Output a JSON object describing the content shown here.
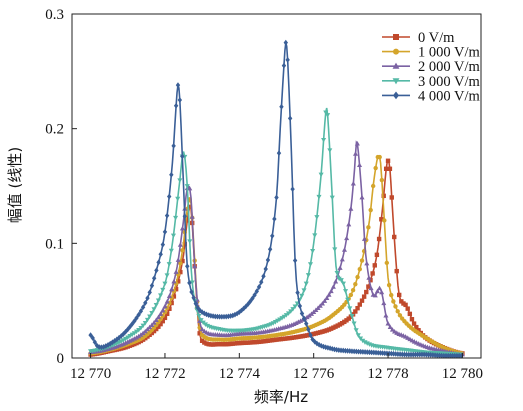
{
  "chart_data": {
    "type": "line",
    "xlabel": "频率/Hz",
    "ylabel": "幅值 (线性)",
    "xlim": [
      12769.5,
      12780.5
    ],
    "ylim": [
      0,
      0.3
    ],
    "xticks": [
      12770,
      12772,
      12774,
      12776,
      12778,
      12780
    ],
    "xtick_labels": [
      "12 770",
      "12 772",
      "12 774",
      "12 776",
      "12 778",
      "12 780"
    ],
    "yticks": [
      0,
      0.1,
      0.2,
      0.3
    ],
    "ytick_labels": [
      "0",
      "0.1",
      "0.2",
      "0.3"
    ],
    "grid": false,
    "legend_position": "top-right",
    "series": [
      {
        "name": "0 V/m",
        "color": "#c0492c",
        "marker": "square",
        "x": [
          12770.0,
          12770.5,
          12771.0,
          12771.5,
          12772.0,
          12772.3,
          12772.5,
          12772.6,
          12772.7,
          12772.8,
          12772.9,
          12773.0,
          12773.5,
          12774.0,
          12774.5,
          12775.0,
          12775.5,
          12776.0,
          12776.5,
          12777.0,
          12777.3,
          12777.5,
          12777.7,
          12777.85,
          12777.95,
          12778.0,
          12778.05,
          12778.1,
          12778.2,
          12778.3,
          12778.5,
          12778.7,
          12779.0,
          12779.5,
          12780.0
        ],
        "y": [
          0.003,
          0.006,
          0.01,
          0.018,
          0.035,
          0.06,
          0.09,
          0.12,
          0.13,
          0.08,
          0.03,
          0.015,
          0.012,
          0.013,
          0.014,
          0.016,
          0.018,
          0.021,
          0.026,
          0.036,
          0.05,
          0.065,
          0.09,
          0.13,
          0.165,
          0.172,
          0.165,
          0.14,
          0.09,
          0.055,
          0.045,
          0.03,
          0.018,
          0.009,
          0.004
        ]
      },
      {
        "name": "1 000 V/m",
        "color": "#d4a52b",
        "marker": "circle",
        "x": [
          12770.0,
          12770.5,
          12771.0,
          12771.5,
          12772.0,
          12772.3,
          12772.5,
          12772.6,
          12772.7,
          12772.8,
          12772.9,
          12773.0,
          12773.5,
          12774.0,
          12774.5,
          12775.0,
          12775.5,
          12776.0,
          12776.5,
          12777.0,
          12777.3,
          12777.5,
          12777.6,
          12777.7,
          12777.75,
          12777.8,
          12777.9,
          12778.0,
          12778.2,
          12778.5,
          12779.0,
          12779.5,
          12780.0
        ],
        "y": [
          0.004,
          0.007,
          0.012,
          0.02,
          0.04,
          0.065,
          0.1,
          0.13,
          0.135,
          0.085,
          0.035,
          0.02,
          0.016,
          0.017,
          0.018,
          0.02,
          0.023,
          0.028,
          0.037,
          0.055,
          0.085,
          0.12,
          0.15,
          0.172,
          0.176,
          0.17,
          0.12,
          0.07,
          0.045,
          0.03,
          0.018,
          0.009,
          0.004
        ]
      },
      {
        "name": "2 000 V/m",
        "color": "#7b62a3",
        "marker": "triangle-up",
        "x": [
          12770.0,
          12770.5,
          12771.0,
          12771.5,
          12772.0,
          12772.3,
          12772.5,
          12772.6,
          12772.7,
          12772.8,
          12772.9,
          12773.0,
          12773.5,
          12774.0,
          12774.5,
          12775.0,
          12775.5,
          12776.0,
          12776.5,
          12776.8,
          12777.0,
          12777.1,
          12777.15,
          12777.2,
          12777.3,
          12777.4,
          12777.6,
          12777.8,
          12778.0,
          12778.5,
          12779.0,
          12779.5,
          12780.0
        ],
        "y": [
          0.005,
          0.008,
          0.014,
          0.024,
          0.045,
          0.075,
          0.12,
          0.148,
          0.14,
          0.08,
          0.04,
          0.025,
          0.02,
          0.021,
          0.022,
          0.025,
          0.03,
          0.04,
          0.06,
          0.09,
          0.13,
          0.165,
          0.188,
          0.18,
          0.14,
          0.09,
          0.055,
          0.06,
          0.03,
          0.018,
          0.01,
          0.006,
          0.003
        ]
      },
      {
        "name": "3 000 V/m",
        "color": "#55b9a6",
        "marker": "triangle-down",
        "x": [
          12770.0,
          12770.5,
          12771.0,
          12771.5,
          12772.0,
          12772.2,
          12772.4,
          12772.5,
          12772.6,
          12772.7,
          12772.8,
          12773.0,
          12773.5,
          12774.0,
          12774.5,
          12775.0,
          12775.5,
          12775.8,
          12776.0,
          12776.2,
          12776.3,
          12776.35,
          12776.4,
          12776.5,
          12776.6,
          12776.8,
          12777.0,
          12777.2,
          12777.5,
          12778.0,
          12778.5,
          12779.0,
          12779.5,
          12780.0
        ],
        "y": [
          0.006,
          0.01,
          0.018,
          0.032,
          0.065,
          0.1,
          0.155,
          0.18,
          0.15,
          0.08,
          0.05,
          0.032,
          0.025,
          0.024,
          0.026,
          0.032,
          0.045,
          0.065,
          0.1,
          0.16,
          0.205,
          0.218,
          0.2,
          0.14,
          0.08,
          0.065,
          0.04,
          0.02,
          0.012,
          0.009,
          0.007,
          0.005,
          0.004,
          0.003
        ]
      },
      {
        "name": "4 000 V/m",
        "color": "#3a5f97",
        "marker": "diamond",
        "x": [
          12770.0,
          12770.2,
          12770.5,
          12771.0,
          12771.5,
          12771.8,
          12772.0,
          12772.2,
          12772.3,
          12772.35,
          12772.4,
          12772.5,
          12772.6,
          12772.8,
          12773.0,
          12773.5,
          12774.0,
          12774.5,
          12774.8,
          12775.0,
          12775.1,
          12775.2,
          12775.25,
          12775.3,
          12775.4,
          12775.5,
          12775.6,
          12775.8,
          12776.0,
          12776.5,
          12777.0,
          12777.5,
          12778.0,
          12778.5,
          12779.0,
          12779.5,
          12780.0
        ],
        "y": [
          0.02,
          0.01,
          0.012,
          0.025,
          0.05,
          0.08,
          0.11,
          0.17,
          0.22,
          0.238,
          0.225,
          0.15,
          0.08,
          0.05,
          0.04,
          0.036,
          0.04,
          0.06,
          0.09,
          0.14,
          0.2,
          0.255,
          0.275,
          0.26,
          0.18,
          0.085,
          0.05,
          0.03,
          0.015,
          0.008,
          0.006,
          0.005,
          0.004,
          0.003,
          0.003,
          0.002,
          0.002
        ]
      }
    ]
  }
}
